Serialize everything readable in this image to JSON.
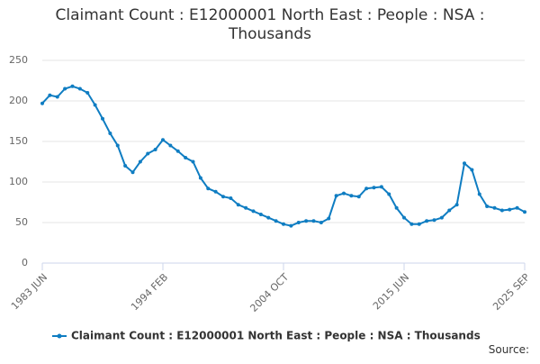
{
  "chart_data": {
    "type": "line",
    "title": "Claimant Count : E12000001 North East : People : NSA : Thousands",
    "source": "Source:",
    "categories": [
      "1983 JUN",
      null,
      null,
      null,
      null,
      null,
      null,
      null,
      null,
      null,
      null,
      null,
      null,
      null,
      null,
      null,
      "1994 FEB",
      null,
      null,
      null,
      null,
      null,
      null,
      null,
      null,
      null,
      null,
      null,
      null,
      null,
      null,
      null,
      "2004 OCT",
      null,
      null,
      null,
      null,
      null,
      null,
      null,
      null,
      null,
      null,
      null,
      null,
      null,
      null,
      null,
      "2015 JUN",
      null,
      null,
      null,
      null,
      null,
      null,
      null,
      null,
      null,
      null,
      null,
      null,
      null,
      null,
      null,
      "2025 SEP"
    ],
    "series": [
      {
        "name": "Claimant Count : E12000001 North East : People : NSA : Thousands",
        "color": "#0f7dc2",
        "values": [
          197,
          207,
          205,
          215,
          218,
          215,
          210,
          195,
          178,
          160,
          145,
          120,
          112,
          125,
          135,
          140,
          152,
          145,
          138,
          130,
          125,
          105,
          92,
          88,
          82,
          80,
          72,
          68,
          64,
          60,
          56,
          52,
          48,
          46,
          50,
          52,
          52,
          50,
          55,
          83,
          86,
          83,
          82,
          92,
          93,
          94,
          85,
          68,
          56,
          48,
          48,
          52,
          53,
          56,
          65,
          72,
          123,
          115,
          85,
          70,
          68,
          65,
          66,
          68,
          63
        ]
      }
    ],
    "ylim": [
      0,
      250
    ],
    "yticks": [
      0,
      50,
      100,
      150,
      200,
      250
    ],
    "grid": true,
    "legend": "bottom"
  }
}
